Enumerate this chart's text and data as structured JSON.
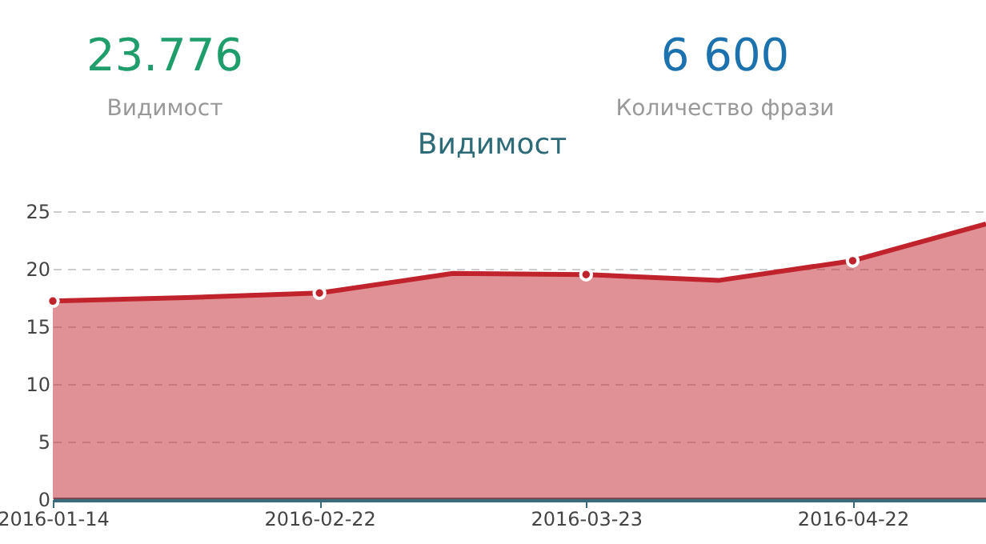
{
  "chart_data": {
    "type": "area",
    "title": "Видимост",
    "categories": [
      "2016-01-14",
      null,
      "2016-02-22",
      null,
      "2016-03-23",
      null,
      "2016-04-22",
      null
    ],
    "series": [
      {
        "color": "#c0232c",
        "values": [
          17.2,
          17.5,
          17.9,
          19.6,
          19.5,
          19.0,
          20.7,
          23.9
        ]
      }
    ],
    "ylim": [
      0,
      25
    ],
    "yticks": [
      0,
      5,
      10,
      15,
      20,
      25
    ],
    "grid": "y",
    "marker": "circle",
    "line_style": "solid",
    "annotations": [
      "23.776",
      "Видимост",
      "6 600",
      "Количество фрази"
    ]
  }
}
